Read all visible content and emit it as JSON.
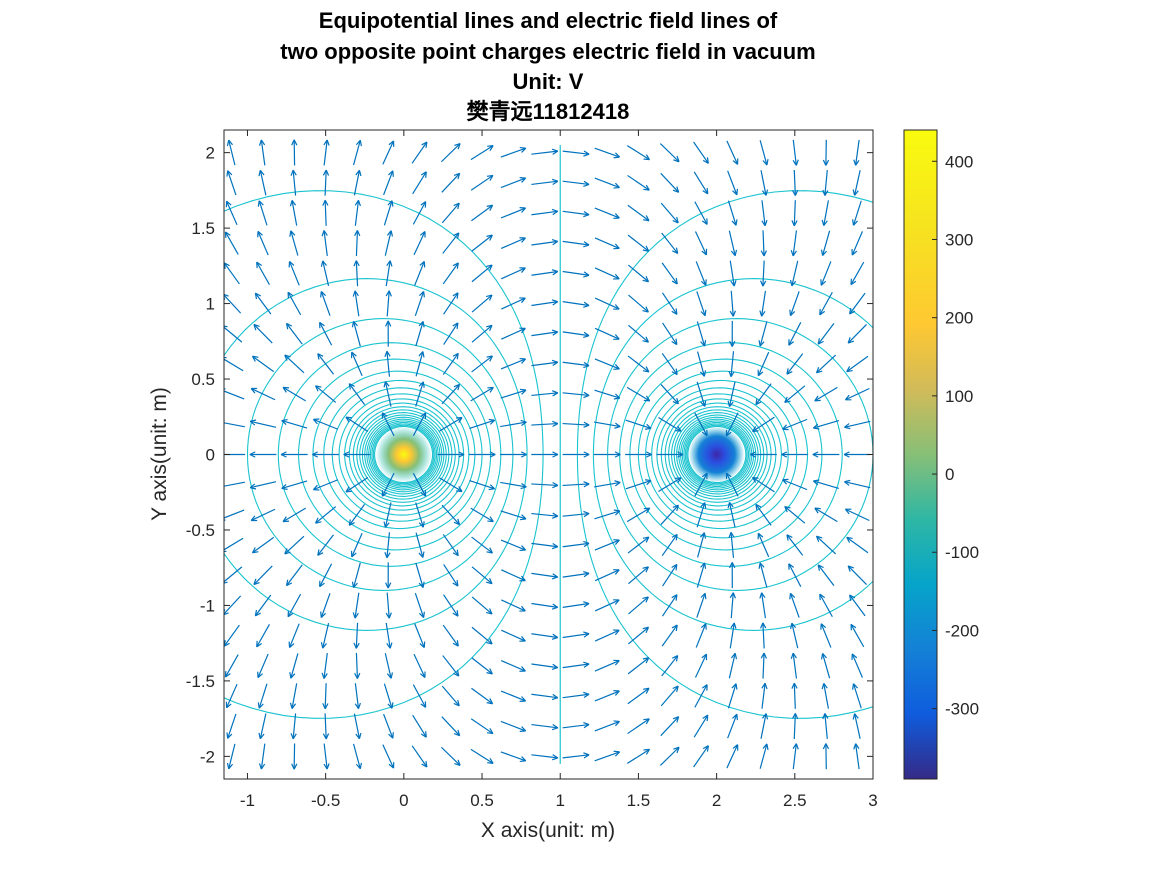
{
  "chart_data": {
    "type": "contour+quiver",
    "title_lines": [
      "Equipotential lines and electric field lines of",
      "two opposite point charges electric field in vacuum",
      "Unit: V",
      "樊青远11812418"
    ],
    "xlabel": "X axis(unit: m)",
    "ylabel": "Y axis(unit: m)",
    "xlim": [
      -1.15,
      3.0
    ],
    "ylim": [
      -2.15,
      2.15
    ],
    "xticks": [
      -1,
      -0.5,
      0,
      0.5,
      1,
      1.5,
      2,
      2.5,
      3
    ],
    "xtick_labels": [
      "-1",
      "-0.5",
      "0",
      "0.5",
      "1",
      "1.5",
      "2",
      "2.5",
      "3"
    ],
    "yticks": [
      -2,
      -1.5,
      -1,
      -0.5,
      0,
      0.5,
      1,
      1.5,
      2
    ],
    "ytick_labels": [
      "-2",
      "-1.5",
      "-1",
      "-0.5",
      "0",
      "0.5",
      "1",
      "1.5",
      "2"
    ],
    "charges": [
      {
        "x": 0,
        "y": 0,
        "sign": "+"
      },
      {
        "x": 2,
        "y": 0,
        "sign": "-"
      }
    ],
    "potential_levels": [
      0,
      20,
      40,
      60,
      80,
      100,
      120,
      140,
      160,
      180,
      200,
      220,
      240,
      260,
      280,
      300,
      320,
      340,
      360,
      380,
      400,
      420,
      440
    ],
    "potential_range": [
      -390,
      440
    ],
    "colorbar": {
      "ticks": [
        400,
        300,
        200,
        100,
        0,
        -100,
        -200,
        -300
      ],
      "tick_labels": [
        "400",
        "300",
        "200",
        "100",
        "0",
        "-100",
        "-200",
        "-300"
      ],
      "range": [
        -390,
        440
      ],
      "colormap": "parula"
    },
    "quiver": {
      "x_start": -1.1,
      "x_step": 0.1,
      "y_start": -2.0,
      "y_step": 0.1,
      "color": "#0072BD",
      "grid_spacing_data": 0.2
    },
    "contour_color": "#1AC3CF"
  }
}
